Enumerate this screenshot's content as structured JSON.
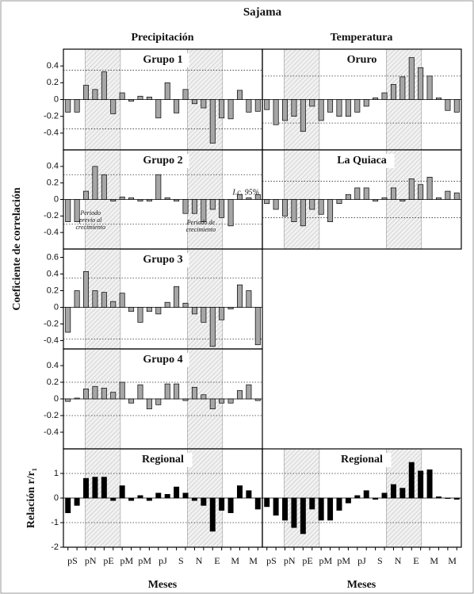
{
  "figure": {
    "title": "Sajama",
    "column_titles": [
      "Precipitación",
      "Temperatura"
    ],
    "ylabel": "Coeficiente de correlación",
    "ylabel_regional": "Relación r/r₁",
    "xlabels": [
      "Meses",
      "Meses"
    ]
  },
  "chart_data": [
    {
      "type": "bar",
      "title": "Grupo 1",
      "color": "#a6a6a6",
      "ylim": [
        -0.6,
        0.6
      ],
      "yticks": [
        -0.4,
        -0.2,
        0.0,
        0.2,
        0.4
      ],
      "ref_lines": [
        -0.35,
        0.35
      ],
      "values": [
        -0.15,
        -0.15,
        0.17,
        0.12,
        0.33,
        -0.17,
        0.08,
        -0.02,
        0.04,
        0.03,
        -0.22,
        0.2,
        -0.16,
        0.12,
        -0.05,
        -0.1,
        -0.52,
        -0.22,
        -0.23,
        0.11,
        -0.15,
        -0.14
      ]
    },
    {
      "type": "bar",
      "title": "Grupo 2",
      "color": "#a6a6a6",
      "ylim": [
        -0.6,
        0.6
      ],
      "yticks": [
        -0.4,
        -0.2,
        0.0,
        0.2,
        0.4
      ],
      "ref_lines": [
        -0.3,
        0.3
      ],
      "annotations": [
        [
          "Periodo",
          "previo al",
          "crecimiento"
        ],
        [
          "Periodo de",
          "crecimiento"
        ],
        [
          "I.c. 95%"
        ]
      ],
      "values": [
        -0.27,
        -0.27,
        0.1,
        0.4,
        0.3,
        -0.02,
        0.03,
        0.02,
        -0.02,
        -0.02,
        0.3,
        0.02,
        -0.02,
        -0.17,
        -0.17,
        -0.27,
        -0.12,
        -0.22,
        -0.32,
        0.06,
        0.02,
        0.06
      ]
    },
    {
      "type": "bar",
      "title": "Grupo 3",
      "color": "#a6a6a6",
      "ylim": [
        -0.5,
        0.7
      ],
      "yticks": [
        -0.4,
        -0.2,
        0.0,
        0.2,
        0.4,
        0.6
      ],
      "ref_lines": [
        -0.38,
        0.35
      ],
      "values": [
        -0.3,
        0.2,
        0.43,
        0.2,
        0.18,
        0.07,
        0.17,
        -0.05,
        -0.18,
        -0.05,
        -0.08,
        0.06,
        0.25,
        0.05,
        -0.08,
        -0.18,
        -0.47,
        -0.15,
        -0.02,
        0.27,
        0.2,
        -0.45
      ]
    },
    {
      "type": "bar",
      "title": "Grupo 4",
      "color": "#a6a6a6",
      "ylim": [
        -0.6,
        0.6
      ],
      "yticks": [
        -0.4,
        -0.2,
        0.0,
        0.2,
        0.4
      ],
      "ref_lines": [
        -0.2,
        0.2
      ],
      "values": [
        -0.03,
        0.01,
        0.12,
        0.15,
        0.13,
        0.08,
        0.2,
        -0.05,
        0.17,
        -0.12,
        -0.07,
        0.18,
        0.18,
        -0.02,
        0.14,
        0.05,
        -0.12,
        -0.05,
        -0.05,
        0.1,
        0.17,
        -0.02
      ]
    },
    {
      "type": "bar",
      "title": "Regional",
      "color": "#000000",
      "ylim": [
        -2,
        2
      ],
      "yticks": [
        -2,
        -1,
        0,
        1
      ],
      "ref_lines": [
        -1,
        1
      ],
      "categories": [
        "pS",
        null,
        "pN",
        null,
        "pE",
        null,
        "pM",
        null,
        "pM",
        null,
        "pJ",
        null,
        "S",
        null,
        "N",
        null,
        "E",
        null,
        "M",
        null,
        "M",
        null
      ],
      "values": [
        -0.6,
        -0.3,
        0.8,
        0.85,
        0.85,
        -0.1,
        0.5,
        -0.1,
        0.1,
        -0.1,
        0.2,
        0.15,
        0.45,
        0.2,
        -0.1,
        -0.3,
        -1.35,
        -0.5,
        -0.6,
        0.5,
        0.3,
        -0.45
      ]
    },
    {
      "type": "bar",
      "title": "Oruro",
      "color": "#a6a6a6",
      "ylim": [
        -0.6,
        0.6
      ],
      "ref_lines": [
        -0.28,
        0.28
      ],
      "values": [
        -0.12,
        -0.3,
        -0.25,
        -0.2,
        -0.38,
        -0.08,
        -0.25,
        -0.15,
        -0.2,
        -0.2,
        -0.15,
        -0.08,
        0.02,
        0.08,
        0.18,
        0.27,
        0.5,
        0.38,
        0.28,
        0.02,
        -0.13,
        -0.15
      ]
    },
    {
      "type": "bar",
      "title": "La Quiaca",
      "color": "#a6a6a6",
      "ylim": [
        -0.6,
        0.6
      ],
      "ref_lines": [
        -0.22,
        0.22
      ],
      "values": [
        -0.05,
        -0.12,
        -0.2,
        -0.27,
        -0.32,
        -0.12,
        -0.18,
        -0.27,
        -0.05,
        0.06,
        0.14,
        0.14,
        -0.02,
        0.02,
        0.14,
        -0.02,
        0.25,
        0.18,
        0.27,
        0.02,
        0.1,
        0.08
      ]
    },
    {
      "type": "bar",
      "title": "Regional",
      "color": "#000000",
      "ylim": [
        -2,
        2
      ],
      "ref_lines": [
        -1,
        1
      ],
      "categories": [
        "pS",
        null,
        "pN",
        null,
        "pE",
        null,
        "pM",
        null,
        "pM",
        null,
        "pJ",
        null,
        "S",
        null,
        "N",
        null,
        "E",
        null,
        "M",
        null,
        "M",
        null
      ],
      "values": [
        -0.35,
        -0.7,
        -0.9,
        -1.2,
        -1.45,
        -0.45,
        -0.9,
        -0.9,
        -0.5,
        -0.2,
        0.1,
        0.3,
        -0.05,
        0.2,
        0.55,
        0.4,
        1.45,
        1.1,
        1.15,
        0.05,
        -0.02,
        -0.05
      ]
    }
  ]
}
